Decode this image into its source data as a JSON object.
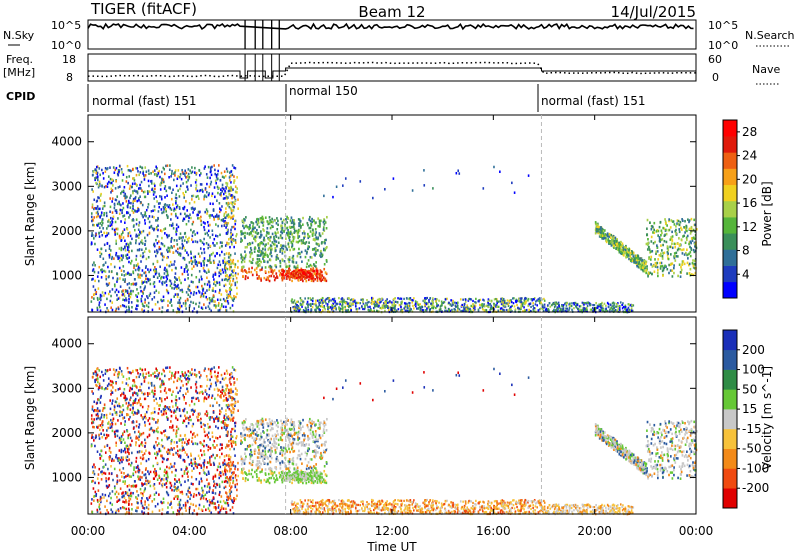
{
  "header": {
    "radar": "TIGER (fitACF)",
    "beam": "Beam 12",
    "date": "14/Jul/2015"
  },
  "top_panels": {
    "nsky_label": "N.Sky",
    "nsky_ticks": [
      "10^5",
      "10^0"
    ],
    "nsearch_label": "N.Search",
    "nsearch_ticks": [
      "10^5",
      "10^0"
    ],
    "freq_label_1": "Freq.",
    "freq_label_2": "[MHz]",
    "freq_ticks": [
      "18",
      "8"
    ],
    "nave_label": "Nave",
    "nave_ticks": [
      "60",
      "0"
    ],
    "cpid_label": "CPID",
    "cpid_segments": [
      {
        "label": "normal (fast) 151",
        "start_h": 0
      },
      {
        "label": "normal 150",
        "start_h": 7.8
      },
      {
        "label": "normal (fast) 151",
        "start_h": 17.9
      }
    ]
  },
  "chart_data": [
    {
      "type": "heatmap",
      "panel": "power",
      "title": "",
      "xlabel": "",
      "ylabel": "Slant Range [km]",
      "xlim_hours": [
        0,
        24
      ],
      "ylim_km": [
        180,
        4600
      ],
      "x_ticks": [
        "00:00",
        "04:00",
        "08:00",
        "12:00",
        "16:00",
        "20:00",
        "00:00"
      ],
      "y_ticks": [
        "1000",
        "2000",
        "3000",
        "4000"
      ],
      "colorbar": {
        "label": "Power [dB]",
        "tick_labels": [
          "4",
          "8",
          "12",
          "16",
          "20",
          "24",
          "28"
        ],
        "range": [
          0,
          30
        ],
        "colors": [
          "#0000ff",
          "#1e3cbe",
          "#2f6f98",
          "#3a8f5a",
          "#55b53a",
          "#a8d048",
          "#f0d020",
          "#f7a018",
          "#ee6012",
          "#e01a0a",
          "#ff0000"
        ]
      },
      "scatter_regions": [
        {
          "x": [
            0,
            6
          ],
          "y": [
            180,
            3500
          ],
          "density": "dense",
          "dominant": "low power 4-12 dB with scattered 16-24 dB"
        },
        {
          "x": [
            6,
            9.6
          ],
          "y": [
            800,
            2400
          ],
          "density": "dense",
          "dominant": "12-20 dB, band near 1000 km at 24-28 dB"
        },
        {
          "x": [
            7.5,
            18
          ],
          "y": [
            180,
            500
          ],
          "density": "moderate",
          "dominant": "ground scatter 8-20 dB"
        },
        {
          "x": [
            20,
            24
          ],
          "y": [
            1000,
            2200
          ],
          "density": "dense",
          "dominant": "12-20 dB slanted band"
        }
      ]
    },
    {
      "type": "heatmap",
      "panel": "velocity",
      "title": "",
      "xlabel": "Time UT",
      "ylabel": "Slant Range [km]",
      "xlim_hours": [
        0,
        24
      ],
      "ylim_km": [
        180,
        4600
      ],
      "x_ticks": [
        "00:00",
        "04:00",
        "08:00",
        "12:00",
        "16:00",
        "20:00",
        "00:00"
      ],
      "y_ticks": [
        "1000",
        "2000",
        "3000",
        "4000"
      ],
      "colorbar": {
        "label": "Velocity [m s^-1]",
        "tick_labels": [
          "-200",
          "-100",
          "-50",
          "-15",
          "15",
          "50",
          "100",
          "200"
        ],
        "colors": [
          "#e00000",
          "#f04a10",
          "#f38a18",
          "#f7c23a",
          "#c8c8c8",
          "#66c836",
          "#2f8c46",
          "#2b5aa0",
          "#1a2fb8"
        ]
      },
      "scatter_regions": [
        {
          "x": [
            0,
            6
          ],
          "y": [
            180,
            3500
          ],
          "density": "dense",
          "dominant": "mixed red/blue/orange velocities"
        },
        {
          "x": [
            6,
            9.6
          ],
          "y": [
            800,
            2400
          ],
          "density": "dense",
          "dominant": "grey ground scatter with green and orange"
        },
        {
          "x": [
            7.5,
            18
          ],
          "y": [
            180,
            500
          ],
          "density": "moderate",
          "dominant": "orange/yellow ground scatter"
        },
        {
          "x": [
            20,
            24
          ],
          "y": [
            1000,
            2200
          ],
          "density": "dense",
          "dominant": "grey band with orange and green"
        }
      ]
    }
  ]
}
